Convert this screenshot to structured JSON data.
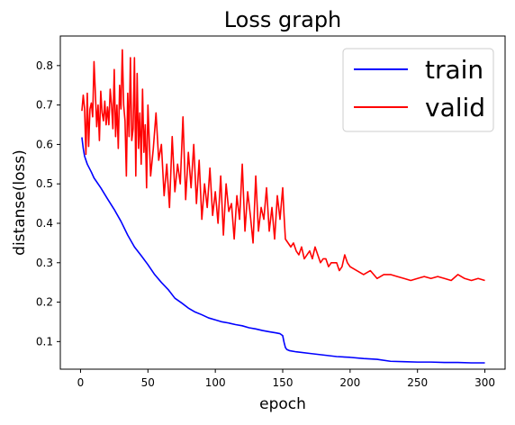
{
  "chart_data": {
    "type": "line",
    "title": "Loss graph",
    "xlabel": "epoch",
    "ylabel": "distanse(loss)",
    "xlim": [
      -15,
      315
    ],
    "ylim": [
      0.03,
      0.875
    ],
    "x_ticks": [
      0,
      50,
      100,
      150,
      200,
      250,
      300
    ],
    "y_ticks": [
      0.1,
      0.2,
      0.3,
      0.4,
      0.5,
      0.6,
      0.7,
      0.8
    ],
    "y_tick_labels": [
      "0.1",
      "0.2",
      "0.3",
      "0.4",
      "0.5",
      "0.6",
      "0.7",
      "0.8"
    ],
    "grid": false,
    "legend_position": "top-right",
    "series": [
      {
        "name": "train",
        "color": "#0000ff",
        "x": [
          1,
          2,
          3,
          5,
          8,
          10,
          15,
          20,
          25,
          30,
          35,
          40,
          45,
          50,
          55,
          60,
          65,
          70,
          75,
          80,
          85,
          90,
          95,
          100,
          105,
          110,
          115,
          120,
          125,
          130,
          135,
          140,
          145,
          148,
          150,
          151,
          152,
          153,
          155,
          160,
          170,
          180,
          190,
          200,
          210,
          220,
          230,
          240,
          250,
          260,
          270,
          280,
          290,
          300
        ],
        "values": [
          0.618,
          0.59,
          0.57,
          0.55,
          0.53,
          0.515,
          0.49,
          0.462,
          0.435,
          0.405,
          0.37,
          0.34,
          0.318,
          0.295,
          0.27,
          0.25,
          0.232,
          0.21,
          0.198,
          0.185,
          0.175,
          0.168,
          0.16,
          0.155,
          0.15,
          0.147,
          0.143,
          0.14,
          0.135,
          0.132,
          0.128,
          0.125,
          0.122,
          0.12,
          0.115,
          0.098,
          0.085,
          0.08,
          0.077,
          0.074,
          0.07,
          0.066,
          0.062,
          0.06,
          0.057,
          0.055,
          0.05,
          0.049,
          0.048,
          0.048,
          0.047,
          0.047,
          0.046,
          0.046
        ]
      },
      {
        "name": "valid",
        "color": "#ff0000",
        "x": [
          1,
          2,
          3,
          4,
          5,
          6,
          7,
          8,
          9,
          10,
          11,
          12,
          13,
          14,
          15,
          16,
          17,
          18,
          19,
          20,
          21,
          22,
          23,
          24,
          25,
          26,
          27,
          28,
          29,
          30,
          31,
          32,
          33,
          34,
          35,
          36,
          37,
          38,
          39,
          40,
          41,
          42,
          43,
          44,
          45,
          46,
          47,
          48,
          49,
          50,
          52,
          54,
          56,
          58,
          60,
          62,
          64,
          66,
          68,
          70,
          72,
          74,
          76,
          78,
          80,
          82,
          84,
          86,
          88,
          90,
          92,
          94,
          96,
          98,
          100,
          102,
          104,
          106,
          108,
          110,
          112,
          114,
          116,
          118,
          120,
          122,
          124,
          126,
          128,
          130,
          132,
          134,
          136,
          138,
          140,
          142,
          144,
          146,
          148,
          150,
          151,
          152,
          154,
          156,
          158,
          160,
          162,
          164,
          166,
          168,
          170,
          172,
          174,
          176,
          178,
          180,
          182,
          184,
          186,
          188,
          190,
          192,
          194,
          196,
          198,
          200,
          205,
          210,
          215,
          220,
          225,
          230,
          235,
          240,
          245,
          250,
          255,
          260,
          265,
          270,
          275,
          280,
          285,
          290,
          295,
          300
        ],
        "values": [
          0.685,
          0.725,
          0.69,
          0.575,
          0.73,
          0.595,
          0.69,
          0.705,
          0.67,
          0.81,
          0.73,
          0.645,
          0.7,
          0.61,
          0.735,
          0.68,
          0.66,
          0.71,
          0.65,
          0.695,
          0.65,
          0.74,
          0.7,
          0.64,
          0.79,
          0.62,
          0.7,
          0.59,
          0.75,
          0.69,
          0.84,
          0.7,
          0.66,
          0.52,
          0.73,
          0.62,
          0.82,
          0.61,
          0.64,
          0.82,
          0.52,
          0.78,
          0.59,
          0.68,
          0.55,
          0.74,
          0.58,
          0.65,
          0.49,
          0.7,
          0.52,
          0.59,
          0.68,
          0.56,
          0.6,
          0.47,
          0.55,
          0.44,
          0.62,
          0.48,
          0.55,
          0.5,
          0.67,
          0.46,
          0.58,
          0.49,
          0.6,
          0.45,
          0.56,
          0.41,
          0.5,
          0.44,
          0.54,
          0.42,
          0.48,
          0.4,
          0.52,
          0.37,
          0.5,
          0.43,
          0.45,
          0.36,
          0.47,
          0.41,
          0.55,
          0.38,
          0.48,
          0.42,
          0.35,
          0.52,
          0.38,
          0.44,
          0.41,
          0.49,
          0.38,
          0.44,
          0.36,
          0.47,
          0.41,
          0.49,
          0.42,
          0.36,
          0.35,
          0.34,
          0.35,
          0.33,
          0.32,
          0.34,
          0.31,
          0.32,
          0.33,
          0.31,
          0.34,
          0.32,
          0.3,
          0.31,
          0.31,
          0.29,
          0.3,
          0.3,
          0.3,
          0.28,
          0.29,
          0.32,
          0.3,
          0.29,
          0.28,
          0.27,
          0.28,
          0.26,
          0.27,
          0.27,
          0.265,
          0.26,
          0.255,
          0.26,
          0.265,
          0.26,
          0.265,
          0.26,
          0.255,
          0.27,
          0.26,
          0.255,
          0.26,
          0.255
        ]
      }
    ]
  }
}
